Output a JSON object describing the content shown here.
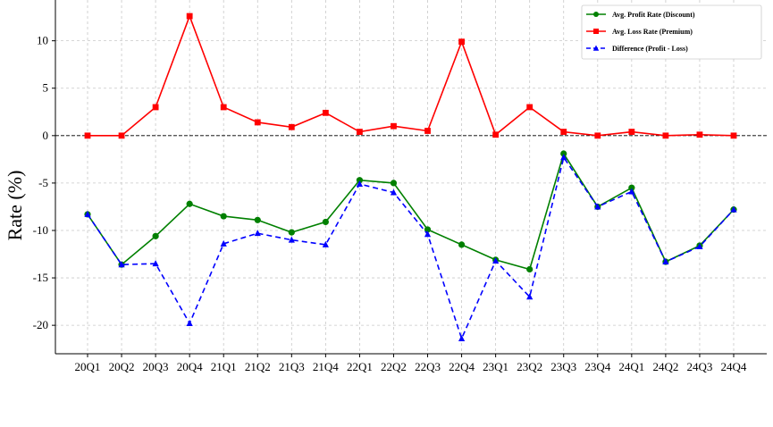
{
  "chart_data": {
    "type": "line",
    "title": "",
    "xlabel": "",
    "ylabel": "Rate (%)",
    "categories": [
      "20Q1",
      "20Q2",
      "20Q3",
      "20Q4",
      "21Q1",
      "21Q2",
      "21Q3",
      "21Q4",
      "22Q1",
      "22Q2",
      "22Q3",
      "22Q4",
      "23Q1",
      "23Q2",
      "23Q3",
      "23Q4",
      "24Q1",
      "24Q2",
      "24Q3",
      "24Q4"
    ],
    "ylim": [
      -23,
      14.3
    ],
    "yticks": [
      -20,
      -15,
      -10,
      -5,
      0,
      5,
      10
    ],
    "grid": true,
    "legend_position": "top-right",
    "reference_line": 0,
    "series": [
      {
        "name": "Avg. Profit Rate (Discount)",
        "color": "#008000",
        "marker": "circle",
        "dash": "solid",
        "values": [
          -8.3,
          -13.6,
          -10.6,
          -7.2,
          -8.5,
          -8.9,
          -10.2,
          -9.1,
          -4.7,
          -5.0,
          -9.9,
          -11.5,
          -13.1,
          -14.1,
          -1.9,
          -7.5,
          -5.5,
          -13.3,
          -11.6,
          -7.8
        ]
      },
      {
        "name": "Avg. Loss Rate (Premium)",
        "color": "#ff0000",
        "marker": "square",
        "dash": "solid",
        "values": [
          0.0,
          0.0,
          3.0,
          12.6,
          3.0,
          1.4,
          0.9,
          2.4,
          0.4,
          1.0,
          0.5,
          9.9,
          0.1,
          3.0,
          0.4,
          0.0,
          0.4,
          0.0,
          0.1,
          0.0
        ]
      },
      {
        "name": "Difference (Profit - Loss)",
        "color": "#0000ff",
        "marker": "triangle",
        "dash": "dashed",
        "values": [
          -8.3,
          -13.6,
          -13.5,
          -19.8,
          -11.4,
          -10.3,
          -11.0,
          -11.5,
          -5.1,
          -6.0,
          -10.4,
          -21.4,
          -13.2,
          -17.0,
          -2.3,
          -7.5,
          -5.9,
          -13.3,
          -11.7,
          -7.8
        ]
      }
    ]
  }
}
